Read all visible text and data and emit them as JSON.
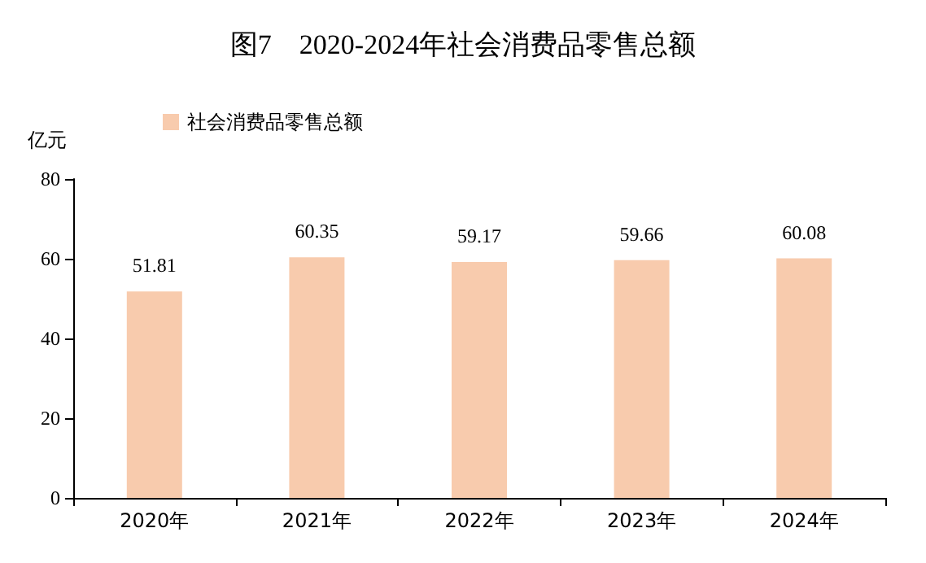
{
  "chart_data": {
    "type": "bar",
    "title": "图7　2020-2024年社会消费品零售总额",
    "ylabel": "亿元",
    "categories": [
      "2020年",
      "2021年",
      "2022年",
      "2023年",
      "2024年"
    ],
    "series": [
      {
        "name": "社会消费品零售总额",
        "color": "#f8cbad",
        "values": [
          51.81,
          60.35,
          59.17,
          59.66,
          60.08
        ]
      }
    ],
    "ylim": [
      0,
      80
    ],
    "yticks": [
      0,
      20,
      40,
      60,
      80
    ],
    "grid": false,
    "legend": "top left",
    "data_labels": true
  }
}
